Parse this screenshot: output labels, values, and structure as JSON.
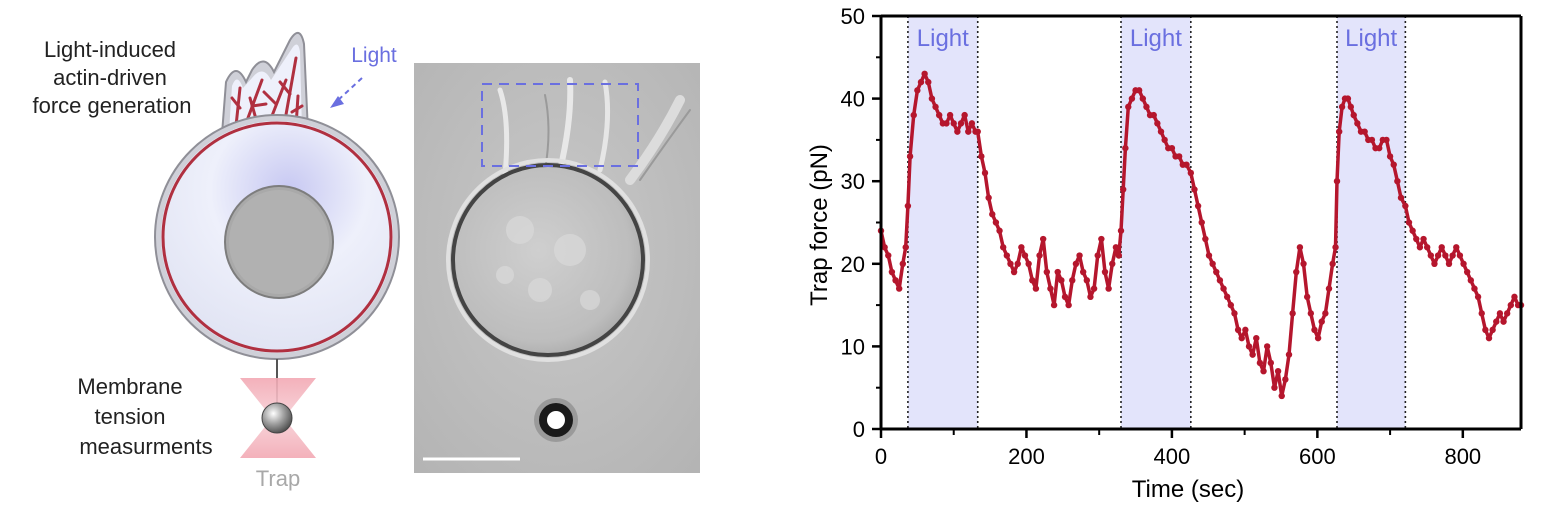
{
  "schematic": {
    "title_lines": [
      "Light-induced",
      "actin-driven",
      "force generation"
    ],
    "light_label": "Light",
    "measure_lines": [
      "Membrane",
      "tension",
      "measurments"
    ],
    "trap_label": "Trap"
  },
  "colors": {
    "series": "#b5162d",
    "light_band": "#e3e4fb",
    "light_text": "#6a6fe0",
    "membrane": "#b03040",
    "nucleus": "#a9a9a9"
  },
  "chart_data": {
    "type": "scatter",
    "xlabel": "Time (sec)",
    "ylabel": "Trap force (pN)",
    "xlim": [
      0,
      880
    ],
    "ylim": [
      0,
      50
    ],
    "xticks": [
      0,
      200,
      400,
      600,
      800
    ],
    "yticks": [
      0,
      10,
      20,
      30,
      40,
      50
    ],
    "light_periods": [
      {
        "label": "Light",
        "start": 37,
        "end": 133
      },
      {
        "label": "Light",
        "start": 330,
        "end": 426
      },
      {
        "label": "Light",
        "start": 627,
        "end": 721
      }
    ],
    "series": [
      {
        "x": [
          0,
          5,
          10,
          15,
          20,
          25,
          30,
          34,
          37,
          40,
          45,
          50,
          55,
          60,
          65,
          70,
          75,
          80,
          85,
          90,
          95,
          100,
          105,
          110,
          115,
          120,
          125,
          130,
          133,
          138,
          143,
          148,
          153,
          158,
          163,
          168,
          173,
          178,
          183,
          188,
          193,
          198,
          203,
          208,
          213,
          218,
          223,
          228,
          233,
          238,
          243,
          248,
          253,
          258,
          263,
          268,
          273,
          278,
          283,
          288,
          293,
          298,
          303,
          308,
          313,
          318,
          323,
          327,
          330,
          333,
          336,
          340,
          345,
          350,
          355,
          360,
          365,
          370,
          375,
          380,
          385,
          390,
          395,
          400,
          405,
          410,
          415,
          420,
          426,
          431,
          436,
          441,
          446,
          451,
          456,
          461,
          466,
          471,
          476,
          481,
          486,
          491,
          496,
          501,
          506,
          511,
          516,
          521,
          526,
          531,
          536,
          541,
          546,
          551,
          556,
          561,
          566,
          571,
          576,
          581,
          586,
          591,
          596,
          601,
          606,
          611,
          616,
          621,
          625,
          627,
          630,
          634,
          638,
          642,
          646,
          650,
          655,
          660,
          665,
          670,
          675,
          680,
          685,
          690,
          695,
          700,
          705,
          710,
          715,
          721,
          726,
          731,
          736,
          741,
          746,
          751,
          756,
          761,
          766,
          771,
          776,
          781,
          786,
          791,
          796,
          801,
          806,
          811,
          816,
          821,
          826,
          831,
          836,
          841,
          846,
          851,
          856,
          861,
          866,
          871,
          876,
          880
        ],
        "y": [
          24,
          22,
          21,
          19,
          18,
          17,
          20,
          22,
          27,
          33,
          38,
          41,
          42,
          43,
          42,
          40,
          39,
          38,
          37,
          37,
          38,
          37,
          36,
          37,
          38,
          36,
          37,
          36,
          36,
          33,
          31,
          28,
          26,
          25,
          24,
          22,
          21,
          20,
          19,
          20,
          22,
          21,
          20,
          18,
          17,
          21,
          23,
          19,
          17,
          15,
          19,
          18,
          16,
          15,
          18,
          20,
          21,
          19,
          18,
          16,
          17,
          21,
          23,
          19,
          17,
          20,
          22,
          21,
          24,
          29,
          34,
          39,
          40,
          41,
          41,
          40,
          39,
          38,
          38,
          37,
          36,
          35,
          34,
          34,
          33,
          33,
          32,
          32,
          31,
          29,
          27,
          25,
          23,
          21,
          20,
          19,
          18,
          17,
          16,
          15,
          14,
          12,
          11,
          12,
          10,
          9,
          11,
          8,
          7,
          10,
          8,
          5,
          7,
          4,
          6,
          9,
          14,
          19,
          22,
          20,
          16,
          14,
          12,
          11,
          13,
          14,
          17,
          20,
          22,
          30,
          36,
          39,
          40,
          40,
          39,
          38,
          37,
          36,
          36,
          35,
          35,
          34,
          34,
          35,
          35,
          33,
          32,
          30,
          28,
          27,
          25,
          24,
          23,
          22,
          23,
          22,
          21,
          20,
          21,
          22,
          21,
          20,
          21,
          22,
          21,
          20,
          19,
          18,
          17,
          16,
          14,
          12,
          11,
          12,
          13,
          14,
          13,
          14,
          15,
          16,
          15,
          15
        ]
      }
    ]
  }
}
